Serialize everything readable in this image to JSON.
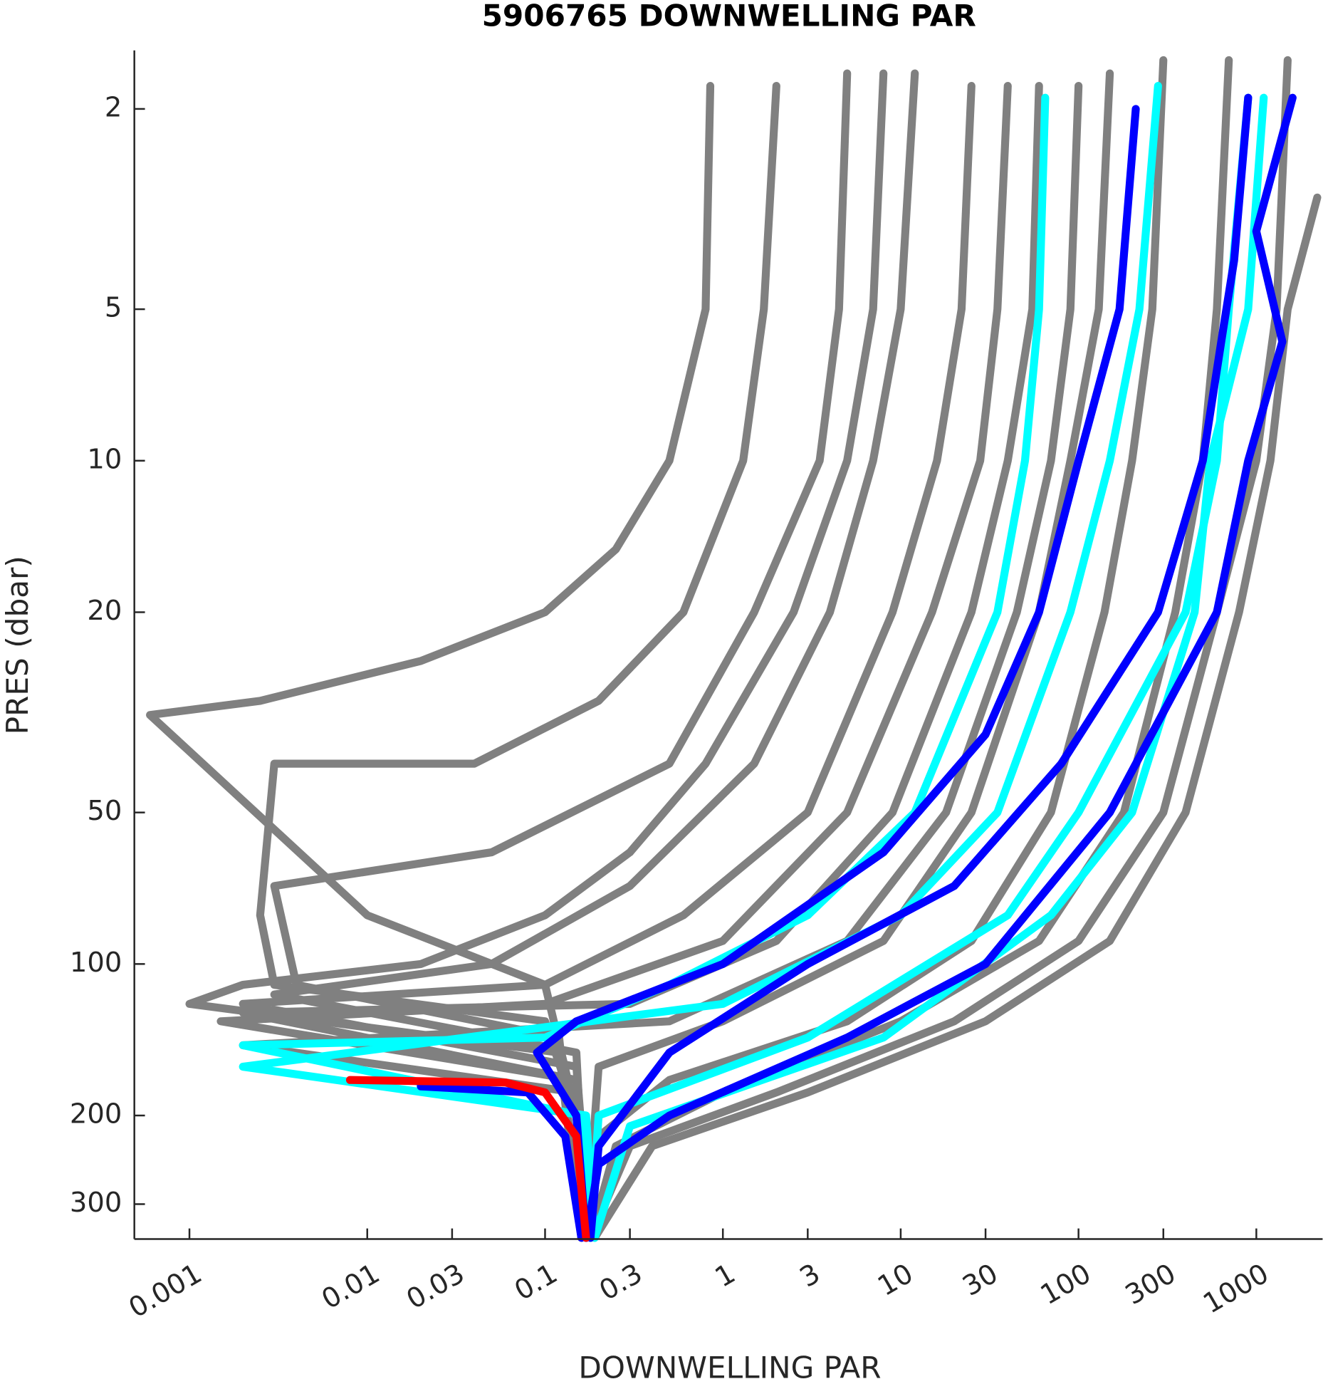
{
  "chart_data": {
    "type": "line",
    "title": "5906765  DOWNWELLING PAR",
    "x_label": "DOWNWELLING PAR",
    "y_label": "PRES (dbar)",
    "xscale": "log",
    "yscale": "log",
    "y_reversed": true,
    "xlim": [
      0.00049,
      2360
    ],
    "ylim": [
      1.53,
      352
    ],
    "xticks": [
      0.001,
      0.01,
      0.03,
      0.1,
      0.3,
      1,
      3,
      10,
      30,
      100,
      300,
      1000
    ],
    "yticks": [
      2,
      5,
      10,
      20,
      50,
      100,
      200,
      300
    ],
    "series": [
      {
        "color": "#808080",
        "x": [
          0.85,
          0.8,
          0.5,
          0.25,
          0.1,
          0.02,
          0.0025,
          0.0006,
          0.01,
          0.1,
          0.15,
          0.17
        ],
        "values": [
          1.8,
          5,
          10,
          15,
          20,
          25,
          30,
          32,
          80,
          110,
          200,
          350
        ]
      },
      {
        "color": "#808080",
        "x": [
          2,
          1.7,
          1.3,
          0.6,
          0.2,
          0.04,
          0.003,
          0.0025,
          0.003,
          0.1,
          0.15,
          0.17
        ],
        "values": [
          1.8,
          5,
          10,
          20,
          30,
          40,
          40,
          80,
          110,
          130,
          200,
          350
        ]
      },
      {
        "color": "#808080",
        "x": [
          5,
          4.5,
          3.5,
          1.5,
          0.5,
          0.05,
          0.003,
          0.004,
          0.12,
          0.16
        ],
        "values": [
          1.7,
          5,
          10,
          20,
          40,
          60,
          70,
          110,
          140,
          350
        ]
      },
      {
        "color": "#808080",
        "x": [
          12,
          10,
          7,
          4,
          1.5,
          0.3,
          0.05,
          0.003,
          0.15,
          0.17
        ],
        "values": [
          1.7,
          5,
          10,
          20,
          40,
          70,
          100,
          115,
          150,
          350
        ]
      },
      {
        "color": "#808080",
        "x": [
          25,
          22,
          16,
          9,
          3,
          0.6,
          0.1,
          0.002,
          0.15,
          0.18
        ],
        "values": [
          1.8,
          5,
          10,
          20,
          50,
          80,
          110,
          120,
          160,
          350
        ]
      },
      {
        "color": "#808080",
        "x": [
          60,
          55,
          40,
          25,
          9,
          2,
          0.3,
          0.002,
          0.15,
          0.18
        ],
        "values": [
          1.8,
          5,
          10,
          20,
          50,
          90,
          120,
          125,
          170,
          350
        ]
      },
      {
        "color": "#808080",
        "x": [
          150,
          130,
          90,
          60,
          25,
          8,
          1,
          0.2,
          0.17
        ],
        "values": [
          1.7,
          5,
          10,
          20,
          50,
          90,
          130,
          160,
          350
        ]
      },
      {
        "color": "#808080",
        "x": [
          300,
          260,
          200,
          140,
          70,
          25,
          5,
          0.5,
          0.2,
          0.18
        ],
        "values": [
          1.6,
          5,
          10,
          20,
          50,
          90,
          130,
          170,
          220,
          350
        ]
      },
      {
        "color": "#808080",
        "x": [
          700,
          600,
          500,
          350,
          180,
          60,
          10,
          1,
          0.25,
          0.18
        ],
        "values": [
          1.6,
          5,
          10,
          20,
          50,
          90,
          130,
          180,
          230,
          350
        ]
      },
      {
        "color": "#808080",
        "x": [
          1500,
          1300,
          1000,
          600,
          300,
          100,
          20,
          2,
          0.3,
          0.18
        ],
        "values": [
          1.6,
          5,
          10,
          20,
          50,
          90,
          130,
          180,
          230,
          350
        ]
      },
      {
        "color": "#808080",
        "x": [
          2200,
          1500,
          1200,
          800,
          400,
          150,
          30,
          3,
          0.4,
          0.19
        ],
        "values": [
          3,
          5,
          10,
          20,
          50,
          90,
          130,
          180,
          230,
          350
        ]
      },
      {
        "color": "#808080",
        "x": [
          8,
          7,
          5,
          2.5,
          0.8,
          0.3,
          0.1,
          0.02,
          0.002,
          0.001,
          0.12,
          0.16
        ],
        "values": [
          1.7,
          5,
          10,
          20,
          40,
          60,
          80,
          100,
          110,
          120,
          150,
          350
        ]
      },
      {
        "color": "#808080",
        "x": [
          40,
          35,
          28,
          15,
          5,
          1,
          0.1,
          0.0015,
          0.15,
          0.17
        ],
        "values": [
          1.8,
          5,
          10,
          20,
          50,
          90,
          120,
          130,
          170,
          350
        ]
      },
      {
        "color": "#808080",
        "x": [
          100,
          90,
          70,
          45,
          18,
          5,
          0.5,
          0.002,
          0.15,
          0.17
        ],
        "values": [
          1.8,
          5,
          10,
          20,
          50,
          90,
          130,
          145,
          180,
          350
        ]
      },
      {
        "color": "#00ffff",
        "x": [
          65,
          60,
          50,
          35,
          12,
          3,
          0.5,
          0.1,
          0.002,
          0.16,
          0.18
        ],
        "values": [
          1.9,
          5,
          10,
          20,
          50,
          80,
          110,
          140,
          145,
          200,
          350
        ]
      },
      {
        "color": "#00ffff",
        "x": [
          280,
          220,
          150,
          90,
          35,
          10,
          1,
          0.002,
          0.17,
          0.19
        ],
        "values": [
          1.8,
          5,
          10,
          20,
          50,
          80,
          120,
          160,
          200,
          350
        ]
      },
      {
        "color": "#00ffff",
        "x": [
          900,
          700,
          600,
          400,
          100,
          40,
          3,
          0.2,
          0.18
        ],
        "values": [
          1.9,
          5,
          10,
          20,
          50,
          80,
          140,
          200,
          350
        ]
      },
      {
        "color": "#00ffff",
        "x": [
          1100,
          900,
          550,
          450,
          200,
          70,
          8,
          0.3,
          0.19
        ],
        "values": [
          1.9,
          5,
          10,
          20,
          50,
          80,
          140,
          210,
          350
        ]
      },
      {
        "color": "#0000ff",
        "x": [
          210,
          170,
          100,
          60,
          30,
          8,
          1,
          0.15,
          0.09,
          0.15,
          0.17
        ],
        "values": [
          2,
          5,
          10,
          20,
          35,
          60,
          100,
          130,
          150,
          200,
          350
        ]
      },
      {
        "color": "#0000ff",
        "x": [
          900,
          750,
          650,
          500,
          280,
          80,
          20,
          3,
          0.5,
          0.2,
          0.18
        ],
        "values": [
          1.9,
          4,
          5.5,
          10,
          20,
          40,
          70,
          100,
          150,
          230,
          350
        ]
      },
      {
        "color": "#0000ff",
        "x": [
          1600,
          1000,
          1400,
          900,
          600,
          150,
          30,
          5,
          0.5,
          0.2,
          0.17
        ],
        "values": [
          1.9,
          3.5,
          5.8,
          10,
          20,
          50,
          100,
          140,
          200,
          250,
          350
        ]
      },
      {
        "color": "#0000ff",
        "x": [
          0.02,
          0.08,
          0.13,
          0.16
        ],
        "values": [
          175,
          180,
          220,
          350
        ]
      },
      {
        "color": "#ff0000",
        "x": [
          0.008,
          0.06,
          0.1,
          0.15,
          0.17
        ],
        "values": [
          170,
          172,
          180,
          220,
          350
        ]
      }
    ]
  }
}
